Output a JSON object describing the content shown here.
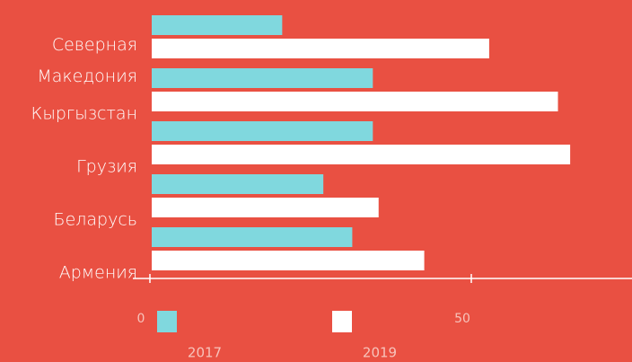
{
  "chart_data": {
    "type": "bar",
    "orientation": "horizontal",
    "categories": [
      "Северная Македония",
      "Кыргызстан",
      "Грузия",
      "Беларусь",
      "Армения"
    ],
    "series": [
      {
        "name": "2017",
        "color": "#80d8de",
        "values": [
          20.3,
          34.4,
          34.4,
          26.7,
          31.2
        ]
      },
      {
        "name": "2019",
        "color": "#ffffff",
        "values": [
          52.5,
          63.2,
          65.1,
          35.3,
          42.4
        ]
      }
    ],
    "xlim": [
      0,
      75
    ],
    "xticks": [
      0,
      50
    ],
    "grid": false,
    "legend": "bottom"
  }
}
